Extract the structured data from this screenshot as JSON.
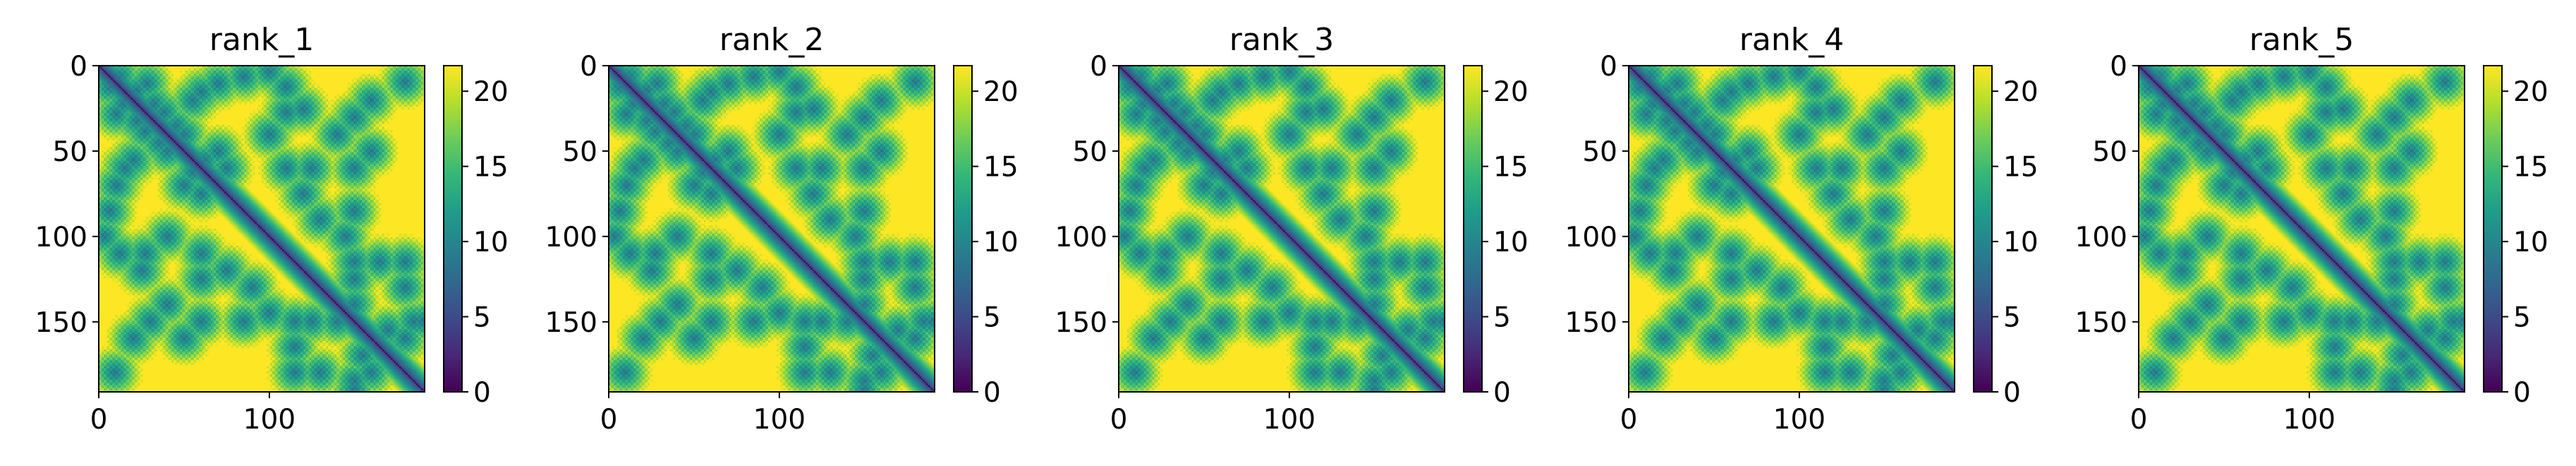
{
  "chart_data": [
    {
      "type": "heatmap",
      "title": "rank_1",
      "n": 192,
      "xlim": [
        0,
        191
      ],
      "ylim": [
        191,
        0
      ],
      "xticks": [
        0,
        100
      ],
      "yticks": [
        0,
        50,
        100,
        150
      ],
      "colorbar": {
        "cmap": "viridis",
        "range": [
          0,
          21.7
        ],
        "ticks": [
          0,
          5,
          10,
          15,
          20
        ]
      },
      "clusters": [
        [
          6,
          12
        ],
        [
          14,
          22
        ],
        [
          10,
          28
        ],
        [
          22,
          32
        ],
        [
          27,
          38
        ],
        [
          35,
          45
        ],
        [
          40,
          50
        ],
        [
          20,
          55
        ],
        [
          55,
          62
        ],
        [
          15,
          60
        ],
        [
          50,
          70
        ],
        [
          60,
          75
        ],
        [
          6,
          85
        ],
        [
          3,
          100
        ],
        [
          10,
          70
        ],
        [
          27,
          110
        ],
        [
          25,
          120
        ],
        [
          40,
          100
        ],
        [
          60,
          110
        ],
        [
          60,
          125
        ],
        [
          75,
          120
        ],
        [
          90,
          130
        ],
        [
          40,
          140
        ],
        [
          20,
          160
        ],
        [
          60,
          150
        ],
        [
          85,
          150
        ],
        [
          100,
          145
        ],
        [
          115,
          150
        ],
        [
          115,
          165
        ],
        [
          125,
          150
        ],
        [
          140,
          150
        ],
        [
          155,
          170
        ],
        [
          150,
          185
        ],
        [
          130,
          180
        ],
        [
          115,
          180
        ],
        [
          160,
          180
        ],
        [
          30,
          150
        ],
        [
          50,
          160
        ],
        [
          9,
          180
        ],
        [
          150,
          190
        ],
        [
          12,
          110
        ]
      ]
    },
    {
      "type": "heatmap",
      "title": "rank_2",
      "n": 192,
      "xlim": [
        0,
        191
      ],
      "ylim": [
        191,
        0
      ],
      "xticks": [
        0,
        100
      ],
      "yticks": [
        0,
        50,
        100,
        150
      ],
      "colorbar": {
        "cmap": "viridis",
        "range": [
          0,
          21.7
        ],
        "ticks": [
          0,
          5,
          10,
          15,
          20
        ]
      },
      "clusters": [
        [
          6,
          12
        ],
        [
          14,
          22
        ],
        [
          10,
          28
        ],
        [
          22,
          32
        ],
        [
          27,
          38
        ],
        [
          35,
          45
        ],
        [
          40,
          50
        ],
        [
          20,
          55
        ],
        [
          55,
          62
        ],
        [
          15,
          60
        ],
        [
          50,
          70
        ],
        [
          60,
          75
        ],
        [
          6,
          85
        ],
        [
          3,
          100
        ],
        [
          10,
          70
        ],
        [
          27,
          110
        ],
        [
          25,
          120
        ],
        [
          40,
          100
        ],
        [
          60,
          110
        ],
        [
          60,
          125
        ],
        [
          75,
          120
        ],
        [
          90,
          130
        ],
        [
          40,
          140
        ],
        [
          20,
          160
        ],
        [
          60,
          150
        ],
        [
          85,
          150
        ],
        [
          100,
          145
        ],
        [
          115,
          150
        ],
        [
          115,
          165
        ],
        [
          125,
          150
        ],
        [
          140,
          150
        ],
        [
          155,
          170
        ],
        [
          150,
          185
        ],
        [
          130,
          180
        ],
        [
          115,
          180
        ],
        [
          160,
          180
        ],
        [
          30,
          150
        ],
        [
          50,
          160
        ],
        [
          9,
          180
        ],
        [
          150,
          190
        ],
        [
          12,
          110
        ]
      ]
    },
    {
      "type": "heatmap",
      "title": "rank_3",
      "n": 192,
      "xlim": [
        0,
        191
      ],
      "ylim": [
        191,
        0
      ],
      "xticks": [
        0,
        100
      ],
      "yticks": [
        0,
        50,
        100,
        150
      ],
      "colorbar": {
        "cmap": "viridis",
        "range": [
          0,
          21.7
        ],
        "ticks": [
          0,
          5,
          10,
          15,
          20
        ]
      },
      "clusters": [
        [
          6,
          12
        ],
        [
          14,
          22
        ],
        [
          10,
          28
        ],
        [
          22,
          32
        ],
        [
          27,
          38
        ],
        [
          35,
          45
        ],
        [
          40,
          50
        ],
        [
          20,
          55
        ],
        [
          55,
          62
        ],
        [
          15,
          60
        ],
        [
          50,
          70
        ],
        [
          60,
          75
        ],
        [
          6,
          85
        ],
        [
          3,
          100
        ],
        [
          10,
          70
        ],
        [
          27,
          110
        ],
        [
          25,
          120
        ],
        [
          40,
          100
        ],
        [
          60,
          110
        ],
        [
          60,
          125
        ],
        [
          75,
          120
        ],
        [
          90,
          130
        ],
        [
          40,
          140
        ],
        [
          20,
          160
        ],
        [
          60,
          150
        ],
        [
          85,
          150
        ],
        [
          100,
          145
        ],
        [
          115,
          150
        ],
        [
          115,
          165
        ],
        [
          125,
          150
        ],
        [
          140,
          150
        ],
        [
          155,
          170
        ],
        [
          150,
          185
        ],
        [
          130,
          180
        ],
        [
          115,
          180
        ],
        [
          160,
          180
        ],
        [
          30,
          150
        ],
        [
          50,
          160
        ],
        [
          9,
          180
        ],
        [
          150,
          190
        ],
        [
          12,
          110
        ]
      ]
    },
    {
      "type": "heatmap",
      "title": "rank_4",
      "n": 192,
      "xlim": [
        0,
        191
      ],
      "ylim": [
        191,
        0
      ],
      "xticks": [
        0,
        100
      ],
      "yticks": [
        0,
        50,
        100,
        150
      ],
      "colorbar": {
        "cmap": "viridis",
        "range": [
          0,
          21.7
        ],
        "ticks": [
          0,
          5,
          10,
          15,
          20
        ]
      },
      "clusters": [
        [
          6,
          12
        ],
        [
          14,
          22
        ],
        [
          10,
          28
        ],
        [
          22,
          32
        ],
        [
          27,
          38
        ],
        [
          35,
          45
        ],
        [
          40,
          50
        ],
        [
          20,
          55
        ],
        [
          55,
          62
        ],
        [
          15,
          60
        ],
        [
          50,
          70
        ],
        [
          60,
          75
        ],
        [
          6,
          85
        ],
        [
          3,
          100
        ],
        [
          10,
          70
        ],
        [
          27,
          110
        ],
        [
          25,
          120
        ],
        [
          40,
          100
        ],
        [
          60,
          110
        ],
        [
          60,
          125
        ],
        [
          75,
          120
        ],
        [
          90,
          130
        ],
        [
          40,
          140
        ],
        [
          20,
          160
        ],
        [
          60,
          150
        ],
        [
          85,
          150
        ],
        [
          100,
          145
        ],
        [
          115,
          150
        ],
        [
          115,
          165
        ],
        [
          125,
          150
        ],
        [
          140,
          150
        ],
        [
          155,
          170
        ],
        [
          150,
          185
        ],
        [
          130,
          180
        ],
        [
          115,
          180
        ],
        [
          160,
          180
        ],
        [
          30,
          150
        ],
        [
          50,
          160
        ],
        [
          9,
          180
        ],
        [
          150,
          190
        ],
        [
          12,
          110
        ]
      ]
    },
    {
      "type": "heatmap",
      "title": "rank_5",
      "n": 192,
      "xlim": [
        0,
        191
      ],
      "ylim": [
        191,
        0
      ],
      "xticks": [
        0,
        100
      ],
      "yticks": [
        0,
        50,
        100,
        150
      ],
      "colorbar": {
        "cmap": "viridis",
        "range": [
          0,
          21.7
        ],
        "ticks": [
          0,
          5,
          10,
          15,
          20
        ]
      },
      "clusters": [
        [
          6,
          12
        ],
        [
          14,
          22
        ],
        [
          10,
          28
        ],
        [
          22,
          32
        ],
        [
          27,
          38
        ],
        [
          35,
          45
        ],
        [
          40,
          50
        ],
        [
          20,
          55
        ],
        [
          55,
          62
        ],
        [
          15,
          60
        ],
        [
          50,
          70
        ],
        [
          60,
          75
        ],
        [
          6,
          85
        ],
        [
          3,
          100
        ],
        [
          10,
          70
        ],
        [
          27,
          110
        ],
        [
          25,
          120
        ],
        [
          40,
          100
        ],
        [
          60,
          110
        ],
        [
          60,
          125
        ],
        [
          75,
          120
        ],
        [
          90,
          130
        ],
        [
          40,
          140
        ],
        [
          20,
          160
        ],
        [
          60,
          150
        ],
        [
          85,
          150
        ],
        [
          100,
          145
        ],
        [
          115,
          150
        ],
        [
          115,
          165
        ],
        [
          125,
          150
        ],
        [
          140,
          150
        ],
        [
          155,
          170
        ],
        [
          150,
          185
        ],
        [
          130,
          180
        ],
        [
          115,
          180
        ],
        [
          160,
          180
        ],
        [
          30,
          150
        ],
        [
          50,
          160
        ],
        [
          9,
          180
        ],
        [
          150,
          190
        ],
        [
          12,
          110
        ]
      ]
    }
  ]
}
